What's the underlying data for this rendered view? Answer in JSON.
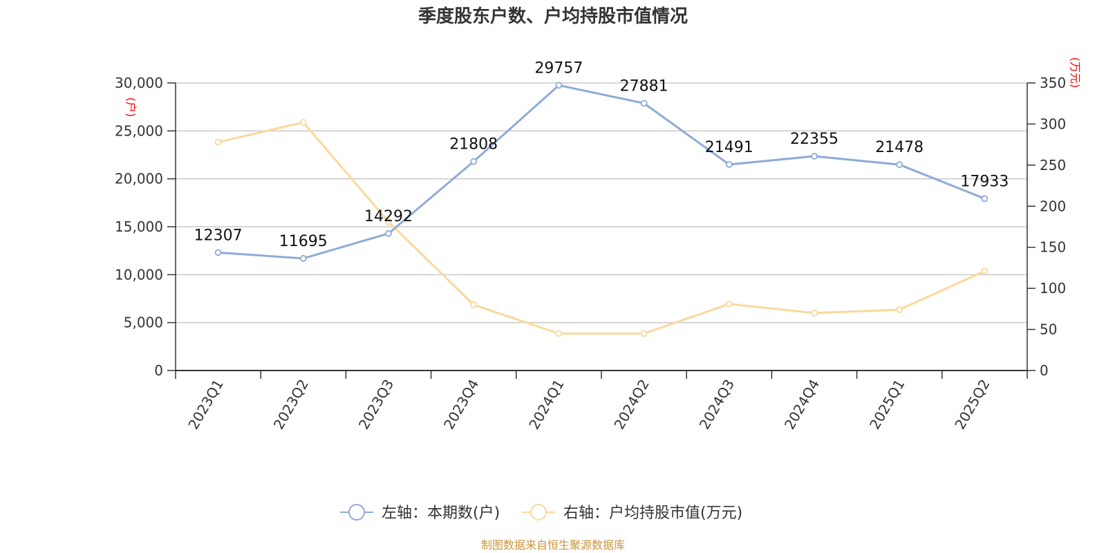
{
  "chart_data": {
    "type": "line",
    "title": "季度股东户数、户均持股市值情况",
    "categories": [
      "2023Q1",
      "2023Q2",
      "2023Q3",
      "2023Q4",
      "2024Q1",
      "2024Q2",
      "2024Q3",
      "2024Q4",
      "2025Q1",
      "2025Q2"
    ],
    "left_axis": {
      "unit": "(户)",
      "ticks": [
        "0",
        "5,000",
        "10,000",
        "15,000",
        "20,000",
        "25,000",
        "30,000"
      ],
      "ylim": [
        0,
        30000
      ]
    },
    "right_axis": {
      "unit": "(万元)",
      "ticks": [
        "0",
        "50",
        "100",
        "150",
        "200",
        "250",
        "300",
        "350"
      ],
      "ylim": [
        0,
        350
      ]
    },
    "grid": true,
    "legend_position": "bottom",
    "series": [
      {
        "name": "左轴：本期数(户)",
        "axis": "left",
        "color": "#8eaad8",
        "values": [
          12307,
          11695,
          14292,
          21808,
          29757,
          27881,
          21491,
          22355,
          21478,
          17933
        ],
        "labels": [
          "12307",
          "11695",
          "14292",
          "21808",
          "29757",
          "27881",
          "21491",
          "22355",
          "21478",
          "17933"
        ]
      },
      {
        "name": "右轴：户均持股市值(万元)",
        "axis": "right",
        "color": "#fbd89a",
        "values": [
          278,
          302,
          181,
          80,
          45,
          45,
          81,
          70,
          74,
          121
        ]
      }
    ]
  },
  "footer": {
    "source": "制图数据来自恒生聚源数据库"
  }
}
